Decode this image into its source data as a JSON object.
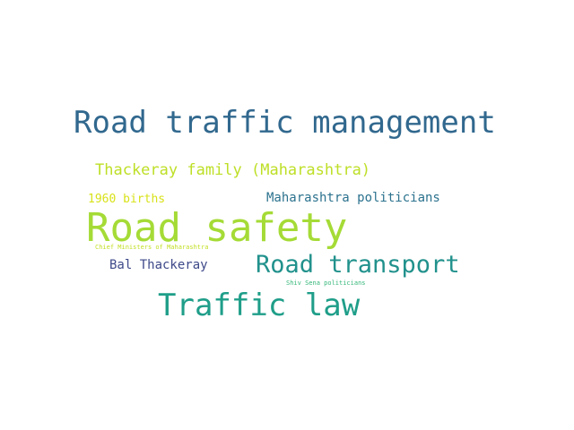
{
  "word_cloud": {
    "words": [
      {
        "text": "Road traffic management",
        "color": "#31688e"
      },
      {
        "text": "Thackeray family (Maharashtra)",
        "color": "#bddf26"
      },
      {
        "text": "1960 births",
        "color": "#d8e219"
      },
      {
        "text": "Maharashtra politicians",
        "color": "#2c728e"
      },
      {
        "text": "Road safety",
        "color": "#a5db36"
      },
      {
        "text": "Chief Ministers of Maharashtra",
        "color": "#c2df23"
      },
      {
        "text": "Road transport",
        "color": "#21918c"
      },
      {
        "text": "Bal Thackeray",
        "color": "#3e4989"
      },
      {
        "text": "Shiv Sena politicians",
        "color": "#35b779"
      },
      {
        "text": "Traffic law",
        "color": "#1f9e89"
      }
    ]
  }
}
